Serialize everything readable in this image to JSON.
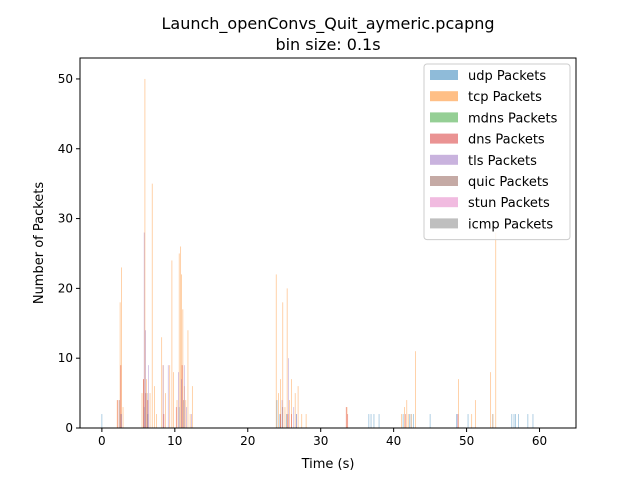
{
  "chart_data": {
    "type": "bar",
    "title": "Launch_openConvs_Quit_aymeric.pcapng",
    "subtitle": "bin size: 0.1s",
    "xlabel": "Time (s)",
    "ylabel": "Number of Packets",
    "xlim": [
      -3,
      65
    ],
    "ylim": [
      0,
      53
    ],
    "xticks": [
      0,
      10,
      20,
      30,
      40,
      50,
      60
    ],
    "yticks": [
      0,
      10,
      20,
      30,
      40,
      50
    ],
    "bin_size": 0.1,
    "grid": false,
    "legend_position": "top-right",
    "series": [
      {
        "name": "udp Packets",
        "color": "#1f77b4",
        "points": [
          [
            0.0,
            2
          ],
          [
            2.6,
            2
          ],
          [
            5.8,
            3
          ],
          [
            6.3,
            2
          ],
          [
            10.6,
            3
          ],
          [
            24.0,
            4
          ],
          [
            24.4,
            2
          ],
          [
            25.3,
            2
          ],
          [
            26.7,
            2
          ],
          [
            36.6,
            2
          ],
          [
            36.9,
            2
          ],
          [
            37.3,
            2
          ],
          [
            38.0,
            2
          ],
          [
            41.3,
            2
          ],
          [
            42.2,
            2
          ],
          [
            42.4,
            2
          ],
          [
            42.7,
            2
          ],
          [
            45.0,
            2
          ],
          [
            48.6,
            2
          ],
          [
            50.2,
            2
          ],
          [
            53.6,
            2
          ],
          [
            56.2,
            2
          ],
          [
            56.5,
            2
          ],
          [
            56.7,
            2
          ],
          [
            57.1,
            2
          ],
          [
            58.4,
            2
          ],
          [
            59.1,
            2
          ]
        ]
      },
      {
        "name": "tcp Packets",
        "color": "#ff7f0e",
        "points": [
          [
            2.1,
            4
          ],
          [
            2.5,
            18
          ],
          [
            2.7,
            23
          ],
          [
            2.9,
            3
          ],
          [
            5.5,
            5
          ],
          [
            5.7,
            7
          ],
          [
            5.9,
            50
          ],
          [
            6.1,
            7
          ],
          [
            6.6,
            5
          ],
          [
            6.9,
            35
          ],
          [
            7.2,
            6
          ],
          [
            7.5,
            2
          ],
          [
            8.2,
            13
          ],
          [
            8.4,
            9
          ],
          [
            8.7,
            5
          ],
          [
            9.3,
            9
          ],
          [
            9.6,
            24
          ],
          [
            9.8,
            8
          ],
          [
            10.3,
            4
          ],
          [
            10.6,
            25
          ],
          [
            10.8,
            26
          ],
          [
            10.9,
            22
          ],
          [
            11.1,
            17
          ],
          [
            11.3,
            6
          ],
          [
            11.5,
            4
          ],
          [
            11.8,
            14
          ],
          [
            12.1,
            2
          ],
          [
            12.4,
            6
          ],
          [
            23.9,
            22
          ],
          [
            24.2,
            5
          ],
          [
            24.5,
            7
          ],
          [
            24.8,
            18
          ],
          [
            25.1,
            3
          ],
          [
            25.4,
            20
          ],
          [
            25.7,
            4
          ],
          [
            26.0,
            7
          ],
          [
            26.5,
            5
          ],
          [
            26.9,
            6
          ],
          [
            27.4,
            2
          ],
          [
            28.0,
            2
          ],
          [
            33.6,
            3
          ],
          [
            41.1,
            2
          ],
          [
            41.5,
            3
          ],
          [
            41.8,
            4
          ],
          [
            42.0,
            2
          ],
          [
            42.4,
            2
          ],
          [
            43.0,
            11
          ],
          [
            48.9,
            7
          ],
          [
            50.7,
            2
          ],
          [
            51.2,
            4
          ],
          [
            53.3,
            8
          ],
          [
            53.6,
            2
          ],
          [
            54.0,
            28
          ]
        ]
      },
      {
        "name": "mdns Packets",
        "color": "#2ca02c",
        "points": []
      },
      {
        "name": "dns Packets",
        "color": "#d62728",
        "points": [
          [
            2.2,
            4
          ],
          [
            2.6,
            9
          ],
          [
            5.7,
            7
          ],
          [
            6.0,
            5
          ],
          [
            6.3,
            4
          ],
          [
            8.5,
            2
          ],
          [
            10.2,
            3
          ],
          [
            11.0,
            9
          ],
          [
            24.5,
            2
          ],
          [
            25.5,
            2
          ],
          [
            26.0,
            2
          ],
          [
            33.5,
            3
          ],
          [
            33.7,
            2
          ],
          [
            41.6,
            2
          ],
          [
            48.8,
            2
          ]
        ]
      },
      {
        "name": "tls Packets",
        "color": "#9467bd",
        "points": [
          [
            2.7,
            2
          ],
          [
            5.8,
            28
          ],
          [
            6.0,
            14
          ],
          [
            6.4,
            9
          ],
          [
            8.4,
            9
          ],
          [
            9.1,
            9
          ],
          [
            10.5,
            8
          ],
          [
            10.9,
            7
          ],
          [
            11.3,
            9
          ],
          [
            11.6,
            3
          ],
          [
            12.3,
            2
          ],
          [
            24.7,
            4
          ],
          [
            25.6,
            10
          ],
          [
            26.3,
            3
          ],
          [
            26.7,
            2
          ],
          [
            48.8,
            2
          ]
        ]
      },
      {
        "name": "quic Packets",
        "color": "#8c564b",
        "points": [
          [
            2.4,
            4
          ],
          [
            6.2,
            5
          ],
          [
            11.2,
            4
          ],
          [
            24.8,
            3
          ]
        ]
      },
      {
        "name": "stun Packets",
        "color": "#e377c2",
        "points": []
      },
      {
        "name": "icmp Packets",
        "color": "#7f7f7f",
        "points": []
      }
    ]
  }
}
